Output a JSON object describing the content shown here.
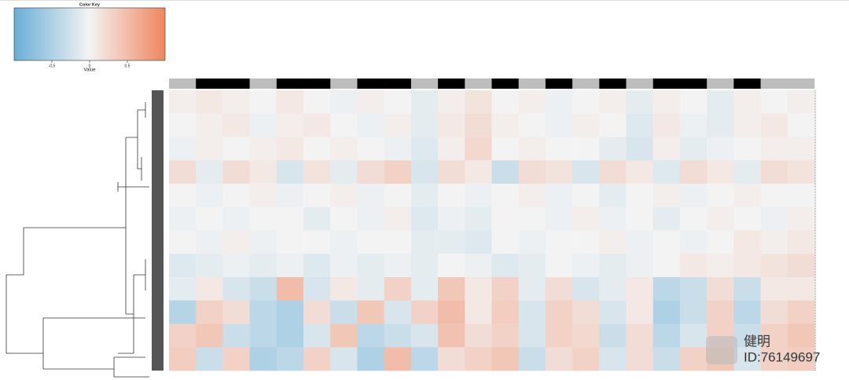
{
  "chart_data": {
    "type": "heatmap",
    "title": "Color Key",
    "x_label": "Value",
    "xlim": [
      -1,
      1
    ],
    "xticks": [
      {
        "value": -0.5,
        "label": "-0.5"
      },
      0,
      {
        "value": 0.5,
        "label": "0.5"
      }
    ],
    "colors": [
      "#6aaed6",
      "#f3f3f3",
      "#ef8660"
    ],
    "column_groups": [
      "#bdbdbd",
      "#000000",
      "#000000",
      "#bdbdbd",
      "#000000",
      "#000000",
      "#bdbdbd",
      "#000000",
      "#000000",
      "#bdbdbd",
      "#000000",
      "#bdbdbd",
      "#000000",
      "#bdbdbd",
      "#000000",
      "#bdbdbd",
      "#000000",
      "#bdbdbd",
      "#000000",
      "#000000",
      "#bdbdbd",
      "#000000",
      "#bdbdbd",
      "#bdbdbd"
    ],
    "matrix": [
      [
        0.05,
        0.1,
        0.05,
        0,
        0.1,
        0,
        -0.05,
        0.05,
        0,
        -0.1,
        0.05,
        0.15,
        0,
        0.05,
        -0.05,
        0,
        0.05,
        -0.1,
        0.05,
        0,
        -0.1,
        0.05,
        0,
        0.05
      ],
      [
        0,
        0.05,
        0.1,
        -0.05,
        0.05,
        0.1,
        0,
        -0.05,
        0.05,
        -0.1,
        0.1,
        0.2,
        0.05,
        0,
        -0.05,
        0.05,
        0,
        -0.15,
        0.1,
        -0.05,
        -0.1,
        0.05,
        0.1,
        0
      ],
      [
        -0.05,
        0.05,
        0,
        0.05,
        0.1,
        0,
        0.05,
        0,
        -0.05,
        -0.15,
        0.05,
        0.25,
        0,
        0.05,
        0,
        0,
        -0.1,
        -0.2,
        0.05,
        -0.1,
        -0.05,
        0,
        0.05,
        0.05
      ],
      [
        0.2,
        -0.1,
        0.2,
        0.1,
        -0.2,
        0.15,
        -0.1,
        0.2,
        0.3,
        -0.2,
        0.2,
        0.1,
        -0.3,
        0.2,
        0.15,
        -0.2,
        0.2,
        0.1,
        -0.15,
        0.2,
        0.1,
        -0.1,
        0.2,
        0.15
      ],
      [
        0,
        -0.05,
        0,
        0.05,
        -0.05,
        0,
        0.05,
        -0.05,
        0,
        -0.1,
        0,
        -0.05,
        0,
        0.05,
        -0.05,
        0,
        -0.1,
        0,
        0.05,
        -0.05,
        0,
        0.05,
        0,
        0
      ],
      [
        -0.05,
        0,
        -0.05,
        0,
        0,
        -0.1,
        0,
        -0.05,
        0.05,
        -0.15,
        -0.05,
        -0.1,
        0,
        0,
        -0.05,
        0.05,
        -0.05,
        0,
        -0.1,
        0,
        0.05,
        0,
        -0.05,
        0.05
      ],
      [
        0,
        -0.05,
        0.05,
        -0.05,
        0,
        0,
        -0.05,
        0,
        0,
        -0.1,
        -0.1,
        -0.15,
        0,
        -0.05,
        0,
        0,
        0.05,
        -0.05,
        0,
        -0.05,
        0,
        0.1,
        0.05,
        0.1
      ],
      [
        -0.15,
        -0.1,
        -0.05,
        -0.1,
        -0.05,
        -0.15,
        -0.05,
        -0.1,
        -0.05,
        -0.1,
        0,
        -0.05,
        -0.15,
        -0.1,
        0,
        -0.05,
        -0.1,
        -0.05,
        0,
        0.1,
        0.05,
        0.1,
        0.15,
        0.2
      ],
      [
        -0.1,
        0.1,
        -0.2,
        -0.3,
        0.5,
        -0.2,
        0.1,
        -0.1,
        0.3,
        -0.1,
        0.4,
        0.1,
        0.3,
        -0.1,
        0.2,
        -0.2,
        -0.1,
        0.1,
        -0.4,
        -0.3,
        0.2,
        -0.3,
        0.1,
        0.1
      ],
      [
        -0.45,
        0.3,
        0.2,
        -0.4,
        -0.5,
        0.2,
        -0.3,
        0.4,
        -0.2,
        0.3,
        0.5,
        0.1,
        0.35,
        -0.2,
        0.3,
        0.2,
        -0.2,
        0.1,
        -0.5,
        -0.3,
        0.3,
        -0.4,
        0.2,
        0.3
      ],
      [
        0.3,
        0.4,
        -0.3,
        -0.4,
        -0.5,
        -0.2,
        0.4,
        -0.4,
        -0.3,
        -0.2,
        0.45,
        0.2,
        0.3,
        -0.2,
        0.3,
        0.25,
        -0.3,
        0.2,
        -0.4,
        -0.2,
        0.3,
        -0.3,
        0.3,
        0.4
      ],
      [
        0.35,
        -0.3,
        0.3,
        -0.5,
        -0.4,
        0.3,
        -0.2,
        -0.5,
        0.5,
        -0.4,
        0.2,
        0.3,
        0.4,
        -0.3,
        0.2,
        0.3,
        -0.2,
        0.2,
        -0.3,
        0.3,
        0.4,
        -0.2,
        0.3,
        0.35
      ]
    ],
    "watermark": [
      "健明",
      "ID:76149697"
    ]
  }
}
